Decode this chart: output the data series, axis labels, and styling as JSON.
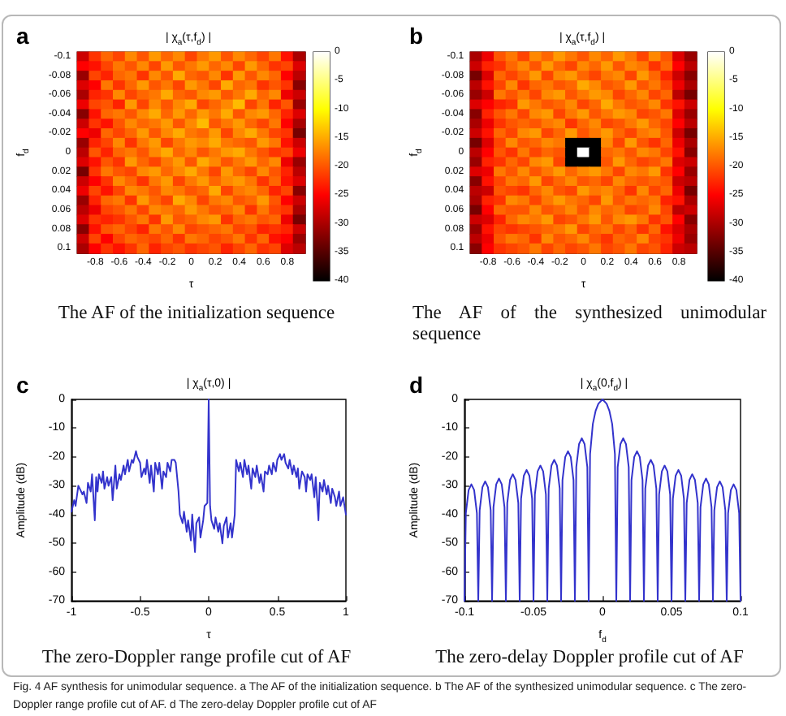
{
  "chart_data": [
    {
      "type": "heatmap",
      "title": "| χ$_{a}$(τ,f$_{d}$) |",
      "xlabel": "τ",
      "ylabel": "f$_{d}$",
      "categories": [
        null,
        "-0.8",
        null,
        "-0.6",
        null,
        "-0.4",
        null,
        "-0.2",
        null,
        "0",
        null,
        "0.2",
        null,
        "0.4",
        null,
        "0.6",
        null,
        "0.8",
        null
      ],
      "y_categories": [
        "-0.1",
        null,
        "-0.08",
        null,
        "-0.06",
        null,
        "-0.04",
        null,
        "-0.02",
        null,
        "0",
        null,
        "0.02",
        null,
        "0.04",
        null,
        "0.06",
        null,
        "0.08",
        null,
        "0.1"
      ],
      "cells": [
        [
          -28,
          -22,
          -19,
          -21,
          -17,
          -20,
          -16,
          -19,
          -17,
          -21,
          -18,
          -16,
          -20,
          -17,
          -19,
          -21,
          -18,
          -24,
          -30
        ],
        [
          -25,
          -24,
          -21,
          -18,
          -20,
          -17,
          -21,
          -16,
          -20,
          -18,
          -16,
          -19,
          -17,
          -21,
          -16,
          -19,
          -22,
          -21,
          -27
        ],
        [
          -31,
          -21,
          -23,
          -19,
          -18,
          -22,
          -17,
          -20,
          -15,
          -19,
          -20,
          -17,
          -22,
          -16,
          -20,
          -17,
          -19,
          -25,
          -29
        ],
        [
          -27,
          -25,
          -18,
          -22,
          -19,
          -16,
          -20,
          -18,
          -21,
          -16,
          -18,
          -21,
          -15,
          -19,
          -18,
          -22,
          -20,
          -22,
          -32
        ],
        [
          -30,
          -23,
          -22,
          -17,
          -21,
          -19,
          -18,
          -15,
          -19,
          -20,
          -17,
          -16,
          -20,
          -18,
          -15,
          -19,
          -17,
          -26,
          -28
        ],
        [
          -26,
          -21,
          -20,
          -23,
          -16,
          -21,
          -17,
          -20,
          -17,
          -15,
          -21,
          -19,
          -17,
          -14,
          -21,
          -18,
          -23,
          -20,
          -31
        ],
        [
          -32,
          -24,
          -19,
          -18,
          -20,
          -17,
          -15,
          -19,
          -16,
          -19,
          -16,
          -18,
          -15,
          -20,
          -17,
          -16,
          -19,
          -23,
          -27
        ],
        [
          -28,
          -22,
          -24,
          -20,
          -17,
          -19,
          -18,
          -16,
          -20,
          -17,
          -14,
          -20,
          -18,
          -16,
          -19,
          -21,
          -18,
          -25,
          -30
        ],
        [
          -25,
          -26,
          -19,
          -21,
          -19,
          -16,
          -20,
          -17,
          -15,
          -18,
          -19,
          -16,
          -21,
          -17,
          -15,
          -18,
          -21,
          -22,
          -33
        ],
        [
          -31,
          -23,
          -21,
          -17,
          -22,
          -18,
          -16,
          -21,
          -18,
          -16,
          -17,
          -15,
          -18,
          -19,
          -20,
          -16,
          -18,
          -24,
          -28
        ],
        [
          -29,
          -20,
          -23,
          -19,
          -18,
          -20,
          -17,
          -15,
          -19,
          -17,
          -20,
          -18,
          -16,
          -15,
          -18,
          -20,
          -22,
          -21,
          -26
        ],
        [
          -27,
          -24,
          -20,
          -22,
          -16,
          -19,
          -21,
          -18,
          -16,
          -20,
          -15,
          -17,
          -20,
          -18,
          -16,
          -19,
          -17,
          -26,
          -31
        ],
        [
          -33,
          -22,
          -18,
          -20,
          -21,
          -17,
          -16,
          -19,
          -17,
          -15,
          -18,
          -21,
          -16,
          -19,
          -21,
          -17,
          -20,
          -23,
          -29
        ],
        [
          -28,
          -25,
          -22,
          -17,
          -19,
          -22,
          -18,
          -16,
          -21,
          -18,
          -16,
          -19,
          -17,
          -16,
          -18,
          -22,
          -19,
          -24,
          -27
        ],
        [
          -26,
          -21,
          -24,
          -21,
          -17,
          -18,
          -20,
          -17,
          -18,
          -20,
          -19,
          -15,
          -21,
          -18,
          -17,
          -19,
          -23,
          -21,
          -32
        ],
        [
          -31,
          -23,
          -19,
          -18,
          -22,
          -16,
          -19,
          -21,
          -15,
          -17,
          -21,
          -18,
          -17,
          -20,
          -19,
          -16,
          -20,
          -25,
          -28
        ],
        [
          -29,
          -26,
          -21,
          -20,
          -18,
          -21,
          -17,
          -18,
          -19,
          -16,
          -18,
          -20,
          -19,
          -17,
          -22,
          -18,
          -21,
          -22,
          -30
        ],
        [
          -27,
          -22,
          -23,
          -22,
          -20,
          -18,
          -22,
          -16,
          -20,
          -19,
          -17,
          -16,
          -22,
          -19,
          -18,
          -20,
          -19,
          -26,
          -33
        ],
        [
          -32,
          -24,
          -20,
          -19,
          -21,
          -23,
          -18,
          -20,
          -17,
          -21,
          -20,
          -19,
          -18,
          -21,
          -20,
          -23,
          -22,
          -23,
          -28
        ],
        [
          -28,
          -21,
          -25,
          -21,
          -19,
          -20,
          -21,
          -19,
          -22,
          -18,
          -19,
          -21,
          -20,
          -18,
          -22,
          -19,
          -24,
          -25,
          -31
        ],
        [
          -30,
          -25,
          -22,
          -24,
          -22,
          -19,
          -23,
          -21,
          -20,
          -22,
          -21,
          -20,
          -23,
          -21,
          -19,
          -22,
          -21,
          -27,
          -29
        ]
      ],
      "clim": [
        -40,
        0
      ],
      "cticks": [
        -40,
        -35,
        -30,
        -25,
        -20,
        -15,
        -10,
        -5,
        0
      ],
      "annotations": [
        "a",
        "The AF of the initialization sequence"
      ]
    },
    {
      "type": "heatmap",
      "title": "| χ$_{a}$(τ,f$_{d}$) |",
      "xlabel": "τ",
      "ylabel": "f$_{d}$",
      "categories": [
        null,
        "-0.8",
        null,
        "-0.6",
        null,
        "-0.4",
        null,
        "-0.2",
        null,
        "0",
        null,
        "0.2",
        null,
        "0.4",
        null,
        "0.6",
        null,
        "0.8",
        null
      ],
      "y_categories": [
        "-0.1",
        null,
        "-0.08",
        null,
        "-0.06",
        null,
        "-0.04",
        null,
        "-0.02",
        null,
        "0",
        null,
        "0.02",
        null,
        "0.04",
        null,
        "0.06",
        null,
        "0.08",
        null,
        "0.1"
      ],
      "cells": [
        [
          -30,
          -26,
          -20,
          -18,
          -21,
          -17,
          -19,
          -16,
          -18,
          -20,
          -17,
          -19,
          -16,
          -18,
          -21,
          -17,
          -20,
          -27,
          -31
        ],
        [
          -28,
          -23,
          -22,
          -19,
          -17,
          -20,
          -16,
          -19,
          -21,
          -17,
          -19,
          -16,
          -20,
          -17,
          -18,
          -22,
          -19,
          -25,
          -29
        ],
        [
          -33,
          -27,
          -19,
          -21,
          -19,
          -16,
          -21,
          -17,
          -16,
          -19,
          -21,
          -18,
          -17,
          -21,
          -16,
          -19,
          -23,
          -28,
          -32
        ],
        [
          -29,
          -24,
          -21,
          -17,
          -22,
          -19,
          -18,
          -20,
          -19,
          -15,
          -17,
          -20,
          -19,
          -16,
          -20,
          -18,
          -21,
          -26,
          -30
        ],
        [
          -31,
          -28,
          -18,
          -20,
          -18,
          -21,
          -17,
          -16,
          -20,
          -18,
          -16,
          -17,
          -21,
          -19,
          -17,
          -21,
          -19,
          -29,
          -33
        ],
        [
          -27,
          -25,
          -23,
          -22,
          -16,
          -18,
          -20,
          -19,
          -17,
          -21,
          -19,
          -15,
          -18,
          -20,
          -19,
          -17,
          -22,
          -24,
          -28
        ],
        [
          -32,
          -23,
          -20,
          -18,
          -21,
          -17,
          -16,
          -21,
          -18,
          -16,
          -20,
          -18,
          -16,
          -17,
          -21,
          -20,
          -18,
          -27,
          -31
        ],
        [
          -30,
          -26,
          -22,
          -20,
          -19,
          -20,
          -18,
          -17,
          -22,
          -19,
          -17,
          -21,
          -20,
          -18,
          -16,
          -19,
          -21,
          -25,
          -29
        ],
        [
          -28,
          -24,
          -19,
          -21,
          -17,
          -16,
          -21,
          -19,
          -16,
          -20,
          -18,
          -16,
          -19,
          -21,
          -18,
          -17,
          -20,
          -28,
          -33
        ],
        [
          -33,
          -27,
          -21,
          -17,
          -20,
          -19,
          -17,
          -18,
          -40,
          -40,
          -40,
          -17,
          -21,
          -16,
          -20,
          -22,
          -19,
          -26,
          -30
        ],
        [
          -29,
          -25,
          -20,
          -22,
          -18,
          -21,
          -19,
          -20,
          -40,
          0,
          -40,
          -19,
          -18,
          -20,
          -17,
          -18,
          -21,
          -24,
          -32
        ],
        [
          -31,
          -23,
          -22,
          -19,
          -21,
          -17,
          -16,
          -21,
          -40,
          -40,
          -40,
          -20,
          -16,
          -19,
          -21,
          -20,
          -18,
          -27,
          -28
        ],
        [
          -27,
          -26,
          -18,
          -20,
          -17,
          -20,
          -18,
          -16,
          -19,
          -17,
          -16,
          -18,
          -21,
          -17,
          -18,
          -16,
          -22,
          -25,
          -31
        ],
        [
          -32,
          -24,
          -21,
          -18,
          -19,
          -16,
          -21,
          -19,
          -17,
          -20,
          -19,
          -21,
          -17,
          -19,
          -20,
          -19,
          -20,
          -28,
          -29
        ],
        [
          -29,
          -28,
          -20,
          -21,
          -22,
          -19,
          -17,
          -20,
          -21,
          -16,
          -18,
          -17,
          -19,
          -22,
          -17,
          -21,
          -19,
          -26,
          -33
        ],
        [
          -30,
          -23,
          -22,
          -17,
          -18,
          -21,
          -18,
          -16,
          -18,
          -19,
          -21,
          -16,
          -20,
          -18,
          -19,
          -18,
          -23,
          -24,
          -30
        ],
        [
          -33,
          -25,
          -19,
          -20,
          -20,
          -17,
          -20,
          -19,
          -17,
          -20,
          -17,
          -19,
          -18,
          -21,
          -20,
          -17,
          -21,
          -29,
          -28
        ],
        [
          -28,
          -27,
          -23,
          -19,
          -17,
          -18,
          -16,
          -21,
          -20,
          -18,
          -16,
          -20,
          -17,
          -16,
          -18,
          -22,
          -20,
          -25,
          -32
        ],
        [
          -31,
          -24,
          -21,
          -22,
          -21,
          -20,
          -19,
          -18,
          -16,
          -21,
          -19,
          -18,
          -21,
          -19,
          -22,
          -19,
          -24,
          -27,
          -30
        ],
        [
          -29,
          -26,
          -20,
          -18,
          -19,
          -22,
          -17,
          -20,
          -19,
          -17,
          -20,
          -22,
          -19,
          -20,
          -17,
          -21,
          -22,
          -26,
          -31
        ],
        [
          -32,
          -25,
          -22,
          -21,
          -20,
          -18,
          -21,
          -19,
          -21,
          -20,
          -18,
          -21,
          -20,
          -18,
          -21,
          -20,
          -23,
          -28,
          -29
        ]
      ],
      "clim": [
        -40,
        0
      ],
      "cticks": [
        -40,
        -35,
        -30,
        -25,
        -20,
        -15,
        -10,
        -5,
        0
      ],
      "annotations": [
        "b",
        "The AF of the synthesized unimodular sequence"
      ]
    },
    {
      "type": "line",
      "title": "| χ$_{a}$(τ,0) |",
      "xlabel": "τ",
      "ylabel": "Amplitude (dB)",
      "x": [
        -1,
        -0.98,
        -0.97,
        -0.95,
        -0.94,
        -0.92,
        -0.91,
        -0.89,
        -0.88,
        -0.86,
        -0.85,
        -0.83,
        -0.82,
        -0.81,
        -0.8,
        -0.78,
        -0.77,
        -0.76,
        -0.74,
        -0.73,
        -0.71,
        -0.7,
        -0.68,
        -0.67,
        -0.65,
        -0.64,
        -0.62,
        -0.61,
        -0.59,
        -0.58,
        -0.56,
        -0.55,
        -0.53,
        -0.52,
        -0.5,
        -0.49,
        -0.47,
        -0.46,
        -0.45,
        -0.43,
        -0.42,
        -0.4,
        -0.39,
        -0.37,
        -0.36,
        -0.34,
        -0.33,
        -0.31,
        -0.3,
        -0.28,
        -0.27,
        -0.25,
        -0.24,
        -0.22,
        -0.21,
        -0.19,
        -0.18,
        -0.16,
        -0.15,
        -0.13,
        -0.12,
        -0.1,
        -0.09,
        -0.07,
        -0.06,
        -0.04,
        -0.03,
        -0.01,
        0,
        0.01,
        0.02,
        0.04,
        0.05,
        0.07,
        0.08,
        0.1,
        0.11,
        0.13,
        0.14,
        0.16,
        0.17,
        0.19,
        0.2,
        0.22,
        0.23,
        0.25,
        0.26,
        0.28,
        0.29,
        0.31,
        0.32,
        0.34,
        0.35,
        0.37,
        0.38,
        0.4,
        0.41,
        0.43,
        0.44,
        0.46,
        0.47,
        0.49,
        0.5,
        0.52,
        0.53,
        0.55,
        0.56,
        0.58,
        0.59,
        0.61,
        0.62,
        0.64,
        0.65,
        0.66,
        0.68,
        0.7,
        0.71,
        0.72,
        0.74,
        0.75,
        0.77,
        0.78,
        0.8,
        0.81,
        0.83,
        0.84,
        0.86,
        0.87,
        0.89,
        0.9,
        0.92,
        0.93,
        0.95,
        0.96,
        0.98,
        1
      ],
      "series": [
        {
          "color": "#3333cc",
          "values": [
            -39,
            -35,
            -37,
            -30,
            -31,
            -33,
            -32,
            -36,
            -29,
            -32,
            -26,
            -42,
            -27,
            -32,
            -26,
            -29,
            -25,
            -31,
            -27,
            -30,
            -27,
            -35,
            -23,
            -31,
            -26,
            -28,
            -23,
            -26,
            -21,
            -25,
            -21,
            -22,
            -18,
            -20,
            -22,
            -27,
            -24,
            -26,
            -21,
            -29,
            -23,
            -32,
            -22,
            -26,
            -22,
            -31,
            -25,
            -27,
            -22,
            -25,
            -21,
            -21,
            -22,
            -32,
            -40,
            -43,
            -39,
            -46,
            -42,
            -49,
            -40,
            -53,
            -43,
            -41,
            -48,
            -42,
            -37,
            -36,
            0,
            -37,
            -42,
            -45,
            -41,
            -46,
            -43,
            -50,
            -44,
            -41,
            -48,
            -43,
            -48,
            -40,
            -21,
            -25,
            -22,
            -27,
            -21,
            -26,
            -23,
            -31,
            -24,
            -27,
            -23,
            -29,
            -26,
            -32,
            -25,
            -26,
            -23,
            -26,
            -22,
            -25,
            -21,
            -19,
            -21,
            -19,
            -22,
            -24,
            -21,
            -26,
            -23,
            -27,
            -24,
            -31,
            -25,
            -27,
            -32,
            -26,
            -28,
            -26,
            -34,
            -27,
            -42,
            -29,
            -32,
            -28,
            -33,
            -30,
            -36,
            -31,
            -34,
            -37,
            -32,
            -37,
            -34,
            -40
          ]
        }
      ],
      "xlim": [
        -1,
        1
      ],
      "xticks": [
        -1,
        -0.5,
        0,
        0.5,
        1
      ],
      "ylim": [
        -70,
        0
      ],
      "yticks": [
        -70,
        -60,
        -50,
        -40,
        -30,
        -20,
        -10,
        0
      ],
      "grid": false,
      "marker": "none",
      "annotations": [
        "c",
        "The zero-Doppler range profile cut of AF"
      ]
    },
    {
      "type": "line",
      "title": "| χ$_{a}$(0,f$_{d}$) |",
      "xlabel": "f$_{d}$",
      "ylabel": "Amplitude (dB)",
      "x": [
        -0.1,
        -0.099,
        -0.097,
        -0.095,
        -0.093,
        -0.091,
        -0.09,
        -0.089,
        -0.087,
        -0.085,
        -0.083,
        -0.081,
        -0.08,
        -0.079,
        -0.077,
        -0.075,
        -0.073,
        -0.071,
        -0.07,
        -0.069,
        -0.067,
        -0.065,
        -0.063,
        -0.061,
        -0.06,
        -0.059,
        -0.057,
        -0.055,
        -0.053,
        -0.051,
        -0.05,
        -0.049,
        -0.047,
        -0.045,
        -0.043,
        -0.041,
        -0.04,
        -0.039,
        -0.037,
        -0.035,
        -0.033,
        -0.031,
        -0.03,
        -0.029,
        -0.027,
        -0.025,
        -0.023,
        -0.021,
        -0.02,
        -0.019,
        -0.017,
        -0.015,
        -0.013,
        -0.011,
        -0.01,
        -0.009,
        -0.007,
        -0.005,
        -0.003,
        0,
        0.003,
        0.005,
        0.007,
        0.009,
        0.01,
        0.011,
        0.013,
        0.015,
        0.017,
        0.019,
        0.02,
        0.021,
        0.023,
        0.025,
        0.027,
        0.029,
        0.03,
        0.031,
        0.033,
        0.035,
        0.037,
        0.039,
        0.04,
        0.041,
        0.043,
        0.045,
        0.047,
        0.049,
        0.05,
        0.051,
        0.053,
        0.055,
        0.057,
        0.059,
        0.06,
        0.061,
        0.063,
        0.065,
        0.067,
        0.069,
        0.07,
        0.071,
        0.073,
        0.075,
        0.077,
        0.079,
        0.08,
        0.081,
        0.083,
        0.085,
        0.087,
        0.089,
        0.09,
        0.091,
        0.093,
        0.095,
        0.097,
        0.099,
        0.1
      ],
      "series": [
        {
          "color": "#3333cc",
          "values": [
            -70,
            -39.5,
            -31.5,
            -29.5,
            -31.5,
            -39.5,
            -70,
            -38.5,
            -30.5,
            -28.5,
            -30.5,
            -38.5,
            -70,
            -37.5,
            -29.5,
            -27.5,
            -29.5,
            -37.5,
            -70,
            -36,
            -28,
            -26,
            -28,
            -36,
            -70,
            -34.5,
            -26.5,
            -24.5,
            -26.5,
            -34.5,
            -70,
            -33,
            -25,
            -23,
            -25,
            -33,
            -70,
            -31,
            -23,
            -21,
            -23,
            -31,
            -70,
            -28,
            -20,
            -18,
            -20,
            -28,
            -70,
            -23.5,
            -15.5,
            -13.5,
            -15.5,
            -23.5,
            -70,
            -19,
            -8.5,
            -4,
            -1.5,
            0,
            -1.5,
            -4,
            -8.5,
            -19,
            -70,
            -23.5,
            -15.5,
            -13.5,
            -15.5,
            -23.5,
            -70,
            -28,
            -20,
            -18,
            -20,
            -28,
            -70,
            -31,
            -23,
            -21,
            -23,
            -31,
            -70,
            -33,
            -25,
            -23,
            -25,
            -33,
            -70,
            -34.5,
            -26.5,
            -24.5,
            -26.5,
            -34.5,
            -70,
            -36,
            -28,
            -26,
            -28,
            -36,
            -70,
            -37.5,
            -29.5,
            -27.5,
            -29.5,
            -37.5,
            -70,
            -38.5,
            -30.5,
            -28.5,
            -30.5,
            -38.5,
            -70,
            -39.5,
            -31.5,
            -29.5,
            -31.5,
            -39.5,
            -70
          ]
        }
      ],
      "xlim": [
        -0.1,
        0.1
      ],
      "xticks": [
        -0.1,
        -0.05,
        0,
        0.05,
        0.1
      ],
      "ylim": [
        -70,
        0
      ],
      "yticks": [
        -70,
        -60,
        -50,
        -40,
        -30,
        -20,
        -10,
        0
      ],
      "grid": false,
      "marker": "none",
      "annotations": [
        "d",
        "The zero-delay Doppler profile cut of AF",
        "Fig. 4 AF synthesis for unimodular sequence. a The AF of the initialization sequence. b The AF of the synthesized unimodular sequence. c The zero-Doppler range profile cut of AF. d The zero-delay Doppler profile cut of AF"
      ]
    }
  ]
}
